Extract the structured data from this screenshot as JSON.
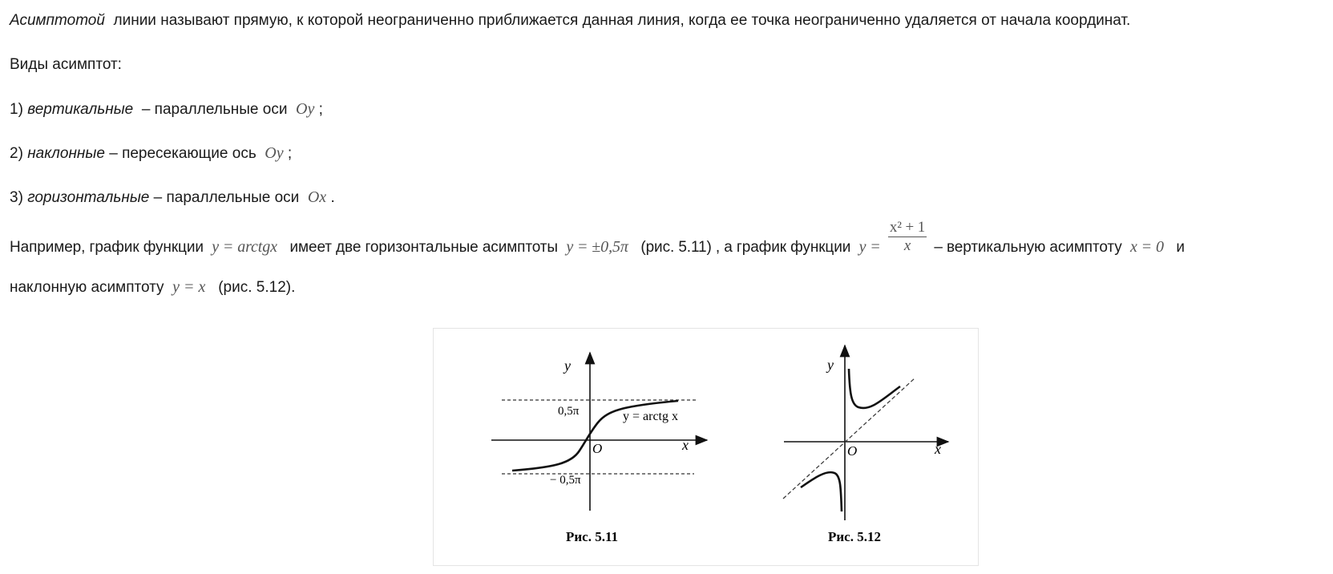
{
  "definition": {
    "term": "Асимптотой",
    "rest": "линии называют прямую, к которой неограниченно приближается данная линия, когда ее точка неограниченно удаляется от начала координат."
  },
  "types_heading": "Виды асимптот:",
  "types": [
    {
      "num": "1)",
      "name": "вертикальные",
      "desc": "– параллельные оси",
      "axis": "Oy",
      "end": ";"
    },
    {
      "num": "2)",
      "name": "наклонные",
      "desc": "– пересекающие ось",
      "axis": "Oy",
      "end": ";"
    },
    {
      "num": "3)",
      "name": "горизонтальные",
      "desc": "– параллельные оси",
      "axis": "Ox",
      "end": "."
    }
  ],
  "example": {
    "t1": "Например, график функции",
    "f1": "y = arctgx",
    "t2": "имеет две горизонтальные асимптоты",
    "f2": "y = ±0,5π",
    "t3": "(рис. 5.11) , а график функции",
    "f3_lhs": "y =",
    "f3_num": "x² + 1",
    "f3_den": "x",
    "t4": "– вертикальную асимптоту",
    "f4": "x = 0",
    "t5": "и",
    "t6": "наклонную асимптоту",
    "f5": "y = x",
    "t7": "(рис. 5.12)."
  },
  "fig1": {
    "caption": "Рис. 5.11",
    "y_label": "y",
    "x_label": "x",
    "origin": "O",
    "upper_label": "0,5π",
    "lower_label": "− 0,5π",
    "curve_label": "y = arctg x"
  },
  "fig2": {
    "caption": "Рис. 5.12",
    "y_label": "y",
    "x_label": "x",
    "origin": "O"
  }
}
